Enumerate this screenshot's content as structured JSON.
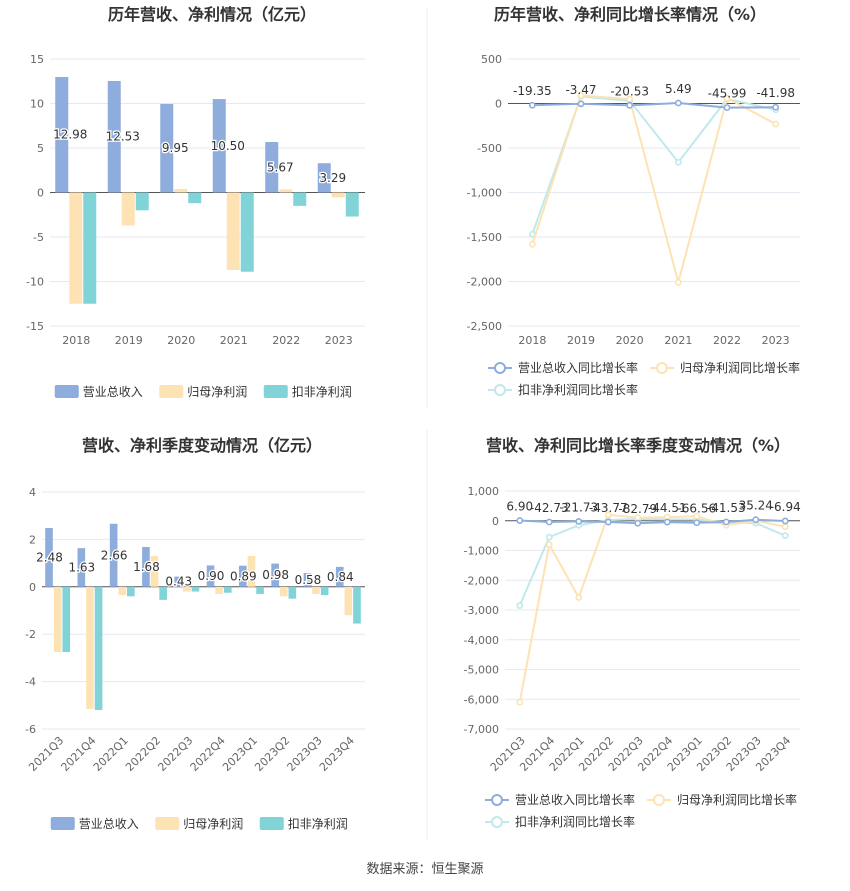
{
  "source_note": "数据来源：恒生聚源",
  "colors": {
    "revenue": "#8eacdc",
    "parent_profit": "#fde3b4",
    "deducted_profit": "#80d3d6",
    "axis_text": "#666666",
    "grid": "#e6e9ef",
    "title": "#333333"
  },
  "chart_data": [
    {
      "type": "bar",
      "title": "历年营收、净利情况（亿元）",
      "categories": [
        "2018",
        "2019",
        "2020",
        "2021",
        "2022",
        "2023"
      ],
      "ylim": [
        -15,
        15
      ],
      "yticks": [
        "-15",
        "-10",
        "-5",
        "0",
        "5",
        "10",
        "15"
      ],
      "series": [
        {
          "name": "营业总收入",
          "values": [
            12.98,
            12.53,
            9.95,
            10.5,
            5.67,
            3.29
          ],
          "labels": [
            "12.98",
            "12.53",
            "9.95",
            "10.50",
            "5.67",
            "3.29"
          ]
        },
        {
          "name": "归母净利润",
          "values": [
            -12.5,
            -3.7,
            0.4,
            -8.7,
            0.35,
            -0.55
          ]
        },
        {
          "name": "扣非净利润",
          "values": [
            -12.5,
            -2.0,
            -1.2,
            -8.9,
            -1.5,
            -2.7
          ]
        }
      ]
    },
    {
      "type": "line",
      "title": "历年营收、净利同比增长率情况（%）",
      "categories": [
        "2018",
        "2019",
        "2020",
        "2021",
        "2022",
        "2023"
      ],
      "ylim": [
        -2500,
        500
      ],
      "yticks": [
        "-2,500",
        "-2,000",
        "-1,500",
        "-1,000",
        "-500",
        "0",
        "500"
      ],
      "series": [
        {
          "name": "营业总收入同比增长率",
          "values": [
            -19.35,
            -3.47,
            -20.53,
            5.49,
            -45.99,
            -41.98
          ],
          "labels": [
            "-19.35",
            "-3.47",
            "-20.53",
            "5.49",
            "-45.99",
            "-41.98"
          ]
        },
        {
          "name": "归母净利润同比增长率",
          "values": [
            -1580,
            90,
            50,
            -2010,
            60,
            -230
          ]
        },
        {
          "name": "扣非净利润同比增长率",
          "values": [
            -1470,
            80,
            30,
            -660,
            50,
            -70
          ]
        }
      ]
    },
    {
      "type": "bar",
      "title": "营收、净利季度变动情况（亿元）",
      "categories": [
        "2021Q3",
        "2021Q4",
        "2022Q1",
        "2022Q2",
        "2022Q3",
        "2022Q4",
        "2023Q1",
        "2023Q2",
        "2023Q3",
        "2023Q4"
      ],
      "ylim": [
        -6,
        4
      ],
      "yticks": [
        "-6",
        "-4",
        "-2",
        "0",
        "2",
        "4"
      ],
      "series": [
        {
          "name": "营业总收入",
          "values": [
            2.48,
            1.63,
            2.66,
            1.68,
            0.43,
            0.9,
            0.89,
            0.98,
            0.58,
            0.84
          ],
          "labels": [
            "2.48",
            "1.63",
            "2.66",
            "1.68",
            "0.43",
            "0.90",
            "0.89",
            "0.98",
            "0.58",
            "0.84"
          ]
        },
        {
          "name": "归母净利润",
          "values": [
            -2.75,
            -5.15,
            -0.35,
            1.3,
            -0.2,
            -0.3,
            1.3,
            -0.4,
            -0.3,
            -1.2
          ]
        },
        {
          "name": "扣非净利润",
          "values": [
            -2.75,
            -5.2,
            -0.4,
            -0.55,
            -0.2,
            -0.25,
            -0.3,
            -0.5,
            -0.35,
            -1.55
          ]
        }
      ]
    },
    {
      "type": "line",
      "title": "营收、净利同比增长率季度变动情况（%）",
      "categories": [
        "2021Q3",
        "2021Q4",
        "2022Q1",
        "2022Q2",
        "2022Q3",
        "2022Q4",
        "2023Q1",
        "2023Q2",
        "2023Q3",
        "2023Q4"
      ],
      "ylim": [
        -7000,
        1000
      ],
      "yticks": [
        "-7,000",
        "-6,000",
        "-5,000",
        "-4,000",
        "-3,000",
        "-2,000",
        "-1,000",
        "0",
        "1,000"
      ],
      "series": [
        {
          "name": "营业总收入同比增长率",
          "values": [
            6.9,
            -42.73,
            -21.73,
            -43.77,
            -82.79,
            -44.51,
            -66.56,
            -41.53,
            35.24,
            -6.94
          ],
          "labels": [
            "6.90",
            "-42.73",
            "-21.73",
            "-43.77",
            "-82.79",
            "-44.51",
            "-66.56",
            "-41.53",
            "35.24",
            "-6.94"
          ]
        },
        {
          "name": "归母净利润同比增长率",
          "values": [
            -6100,
            -800,
            -2580,
            200,
            100,
            120,
            150,
            -150,
            0,
            -200
          ]
        },
        {
          "name": "扣非净利润同比增长率",
          "values": [
            -2850,
            -550,
            -150,
            20,
            60,
            40,
            40,
            -50,
            -80,
            -500
          ]
        }
      ]
    }
  ]
}
